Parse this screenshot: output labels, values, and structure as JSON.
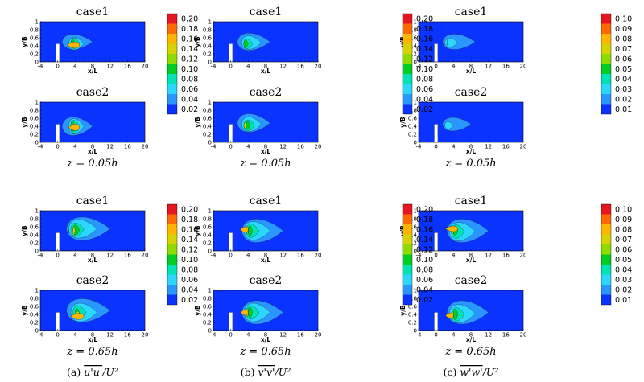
{
  "chart_data": {
    "type": "heatmap",
    "xlabel": "x/L",
    "ylabel": "y/B",
    "xlim": [
      -4,
      20
    ],
    "ylim": [
      0,
      1
    ],
    "x_ticks": [
      "-4",
      "0",
      "4",
      "8",
      "12",
      "16",
      "20"
    ],
    "y_ticks": [
      "0",
      "0.2",
      "0.4",
      "0.6",
      "0.8",
      "1"
    ],
    "captions": [
      {
        "label": "(a)",
        "expr": "u'u'/U²",
        "var": "u'u'",
        "denom": "/U²"
      },
      {
        "label": "(b)",
        "expr": "v'v'/U²",
        "var": "v'v'",
        "denom": "/U²"
      },
      {
        "label": "(c)",
        "expr": "w'w'/U²",
        "var": "w'w'",
        "denom": "/U²"
      }
    ],
    "colorbars": [
      {
        "column": 0,
        "levels": [
          "0.20",
          "0.18",
          "0.16",
          "0.14",
          "0.12",
          "0.10",
          "0.08",
          "0.06",
          "0.04",
          "0.02"
        ]
      },
      {
        "column": 1,
        "levels": [
          "0.20",
          "0.18",
          "0.16",
          "0.14",
          "0.12",
          "0.10",
          "0.08",
          "0.06",
          "0.04",
          "0.02"
        ]
      },
      {
        "column": 2,
        "levels": [
          "0.10",
          "0.09",
          "0.08",
          "0.07",
          "0.06",
          "0.05",
          "0.04",
          "0.03",
          "0.02",
          "0.01"
        ]
      }
    ],
    "colorbar_colors": [
      "#e8141e",
      "#ff6a00",
      "#ffb400",
      "#d7d200",
      "#8cdc00",
      "#00cc22",
      "#00e3b4",
      "#2bd7ff",
      "#2a96ff",
      "#0a33ff"
    ],
    "background_color": "#0a33ff",
    "levels_text": [
      "z = 0.05h",
      "z = 0.65h"
    ],
    "panels": [
      {
        "id": "a-05-case1",
        "title": "case1",
        "level": 0,
        "column": 0,
        "blobs": [
          [
            0.1,
            1.0,
            8,
            0.5,
            10,
            0.24
          ],
          [
            0.2,
            2.5,
            6,
            0.45,
            8,
            0.2
          ],
          [
            0.35,
            3,
            5,
            0.45,
            6,
            0.18
          ],
          [
            0.5,
            3,
            4,
            0.45,
            5,
            0.15
          ],
          [
            0.65,
            4,
            3.5,
            0.42,
            3.5,
            0.12
          ],
          [
            0.82,
            5,
            2.2,
            0.42,
            2.5,
            0.1
          ]
        ]
      },
      {
        "id": "a-05-case2",
        "title": "case2",
        "level": 0,
        "column": 0,
        "blobs": [
          [
            0.1,
            1.0,
            8,
            0.4,
            12,
            0.3
          ],
          [
            0.2,
            2.5,
            6,
            0.4,
            10,
            0.25
          ],
          [
            0.35,
            3,
            5,
            0.38,
            7,
            0.22
          ],
          [
            0.5,
            3,
            4,
            0.4,
            5.5,
            0.18
          ],
          [
            0.65,
            4,
            3.5,
            0.38,
            4,
            0.14
          ],
          [
            0.82,
            5,
            2.5,
            0.37,
            3,
            0.1
          ]
        ]
      },
      {
        "id": "b-05-case1",
        "title": "case1",
        "level": 0,
        "column": 1,
        "blobs": [
          [
            0.1,
            1.5,
            9,
            0.5,
            12,
            0.28
          ],
          [
            0.2,
            2.5,
            7,
            0.48,
            9,
            0.22
          ],
          [
            0.35,
            3,
            5,
            0.45,
            6,
            0.16
          ],
          [
            0.5,
            3,
            4,
            0.45,
            4.5,
            0.13
          ]
        ]
      },
      {
        "id": "b-05-case2",
        "title": "case2",
        "level": 0,
        "column": 1,
        "blobs": [
          [
            0.1,
            1.5,
            9,
            0.48,
            12,
            0.3
          ],
          [
            0.2,
            2.5,
            7,
            0.45,
            9,
            0.24
          ],
          [
            0.35,
            3,
            5.5,
            0.42,
            6,
            0.18
          ],
          [
            0.5,
            3.5,
            4.5,
            0.42,
            4.5,
            0.13
          ],
          [
            0.65,
            3.5,
            3,
            0.42,
            3,
            0.1
          ]
        ]
      },
      {
        "id": "c-05-case1",
        "title": "case1",
        "level": 0,
        "column": 2,
        "blobs": [
          [
            0.1,
            1.5,
            9,
            0.5,
            10,
            0.25
          ],
          [
            0.2,
            2,
            5,
            0.48,
            6,
            0.15
          ],
          [
            0.3,
            2.5,
            2.5,
            0.48,
            3.5,
            0.1
          ]
        ]
      },
      {
        "id": "c-05-case2",
        "title": "case2",
        "level": 0,
        "column": 2,
        "blobs": [
          [
            0.1,
            1.5,
            8,
            0.45,
            9,
            0.22
          ],
          [
            0.2,
            2,
            4,
            0.42,
            5,
            0.12
          ]
        ]
      },
      {
        "id": "a-65-case1",
        "title": "case1",
        "level": 1,
        "column": 0,
        "blobs": [
          [
            0.1,
            2,
            12,
            0.55,
            10,
            0.38
          ],
          [
            0.2,
            2.5,
            9,
            0.55,
            8,
            0.3
          ],
          [
            0.35,
            3,
            6,
            0.53,
            6,
            0.22
          ],
          [
            0.5,
            3.5,
            5,
            0.52,
            4,
            0.17
          ],
          [
            0.65,
            3.5,
            4,
            0.5,
            2.5,
            0.14
          ],
          [
            0.82,
            2.5,
            2.5,
            0.5,
            1.8,
            0.08
          ]
        ]
      },
      {
        "id": "a-65-case2",
        "title": "case2",
        "level": 1,
        "column": 0,
        "blobs": [
          [
            0.1,
            2,
            12,
            0.5,
            10,
            0.38
          ],
          [
            0.2,
            3,
            9,
            0.45,
            8,
            0.3
          ],
          [
            0.35,
            3.5,
            6.5,
            0.45,
            6,
            0.22
          ],
          [
            0.5,
            4,
            5,
            0.42,
            4.5,
            0.17
          ],
          [
            0.65,
            5,
            4,
            0.38,
            3,
            0.13
          ],
          [
            0.82,
            6,
            3,
            0.35,
            2,
            0.1
          ]
        ]
      },
      {
        "id": "b-65-case1",
        "title": "case1",
        "level": 1,
        "column": 1,
        "blobs": [
          [
            0.1,
            2.5,
            12,
            0.5,
            12,
            0.38
          ],
          [
            0.2,
            3,
            9,
            0.5,
            9,
            0.3
          ],
          [
            0.35,
            3.5,
            6.5,
            0.5,
            6.5,
            0.22
          ],
          [
            0.5,
            4,
            5,
            0.5,
            4.5,
            0.17
          ],
          [
            0.65,
            4,
            3.5,
            0.52,
            3,
            0.12
          ],
          [
            0.82,
            4,
            2.2,
            0.53,
            2,
            0.09
          ]
        ]
      },
      {
        "id": "b-65-case2",
        "title": "case2",
        "level": 1,
        "column": 1,
        "blobs": [
          [
            0.1,
            2.5,
            12,
            0.45,
            12,
            0.38
          ],
          [
            0.2,
            3,
            9,
            0.45,
            9,
            0.3
          ],
          [
            0.35,
            3.5,
            6.5,
            0.45,
            7,
            0.22
          ],
          [
            0.5,
            4,
            5,
            0.45,
            5,
            0.17
          ],
          [
            0.65,
            4,
            3.5,
            0.45,
            3.5,
            0.13
          ],
          [
            0.82,
            4,
            2.3,
            0.45,
            2.5,
            0.09
          ]
        ]
      },
      {
        "id": "c-65-case1",
        "title": "case1",
        "level": 1,
        "column": 2,
        "blobs": [
          [
            0.1,
            2.5,
            12,
            0.5,
            12,
            0.38
          ],
          [
            0.2,
            3,
            9,
            0.48,
            9,
            0.3
          ],
          [
            0.35,
            3.5,
            6.5,
            0.48,
            6.5,
            0.22
          ],
          [
            0.5,
            4,
            5,
            0.5,
            4.5,
            0.16
          ],
          [
            0.65,
            4,
            3.5,
            0.52,
            3,
            0.12
          ],
          [
            0.82,
            5,
            2.2,
            0.55,
            2,
            0.09
          ]
        ]
      },
      {
        "id": "c-65-case2",
        "title": "case2",
        "level": 1,
        "column": 2,
        "blobs": [
          [
            0.1,
            2.5,
            12,
            0.45,
            12,
            0.38
          ],
          [
            0.2,
            3,
            9,
            0.42,
            9,
            0.3
          ],
          [
            0.35,
            3.5,
            6.5,
            0.4,
            7,
            0.22
          ],
          [
            0.5,
            4,
            5,
            0.4,
            5,
            0.17
          ],
          [
            0.65,
            4,
            3.5,
            0.38,
            3.5,
            0.13
          ],
          [
            0.82,
            4,
            2.2,
            0.37,
            2.5,
            0.09
          ]
        ]
      }
    ]
  }
}
